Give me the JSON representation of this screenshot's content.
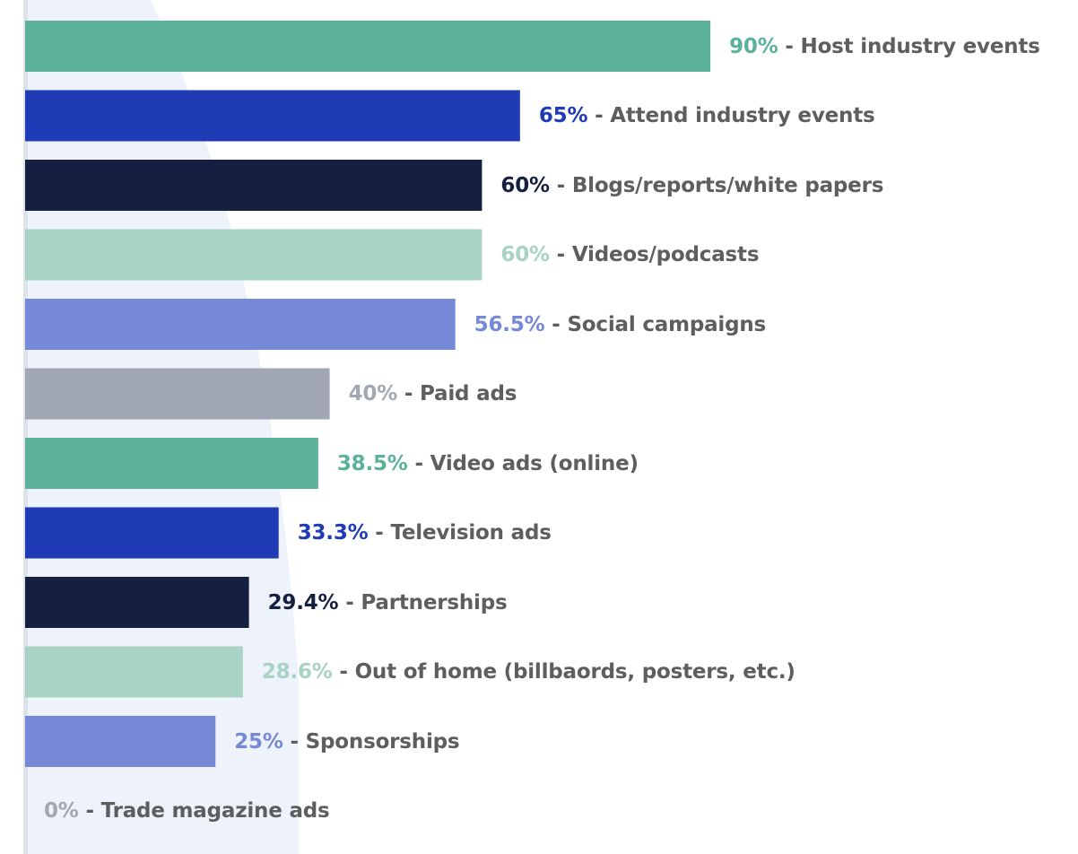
{
  "chart_data": {
    "type": "bar",
    "orientation": "horizontal",
    "title": "",
    "xlabel": "",
    "ylabel": "",
    "xlim": [
      0,
      100
    ],
    "grid": false,
    "legend": "none",
    "label_separator": " - ",
    "label_text_color": "#5e5e5e",
    "categories": [
      "Host industry events",
      "Attend industry events",
      "Blogs/reports/white papers",
      "Videos/podcasts",
      "Social campaigns",
      "Paid ads",
      "Video ads (online)",
      "Television ads",
      "Partnerships",
      "Out of home (billbaords, posters, etc.)",
      "Sponsorships",
      "Trade magazine ads"
    ],
    "values": [
      90,
      65,
      60,
      60,
      56.5,
      40,
      38.5,
      33.3,
      29.4,
      28.6,
      25,
      0
    ],
    "value_labels": [
      "90%",
      "65%",
      "60%",
      "60%",
      "56.5%",
      "40%",
      "38.5%",
      "33.3%",
      "29.4%",
      "28.6%",
      "25%",
      "0%"
    ],
    "colors": [
      "#5bb199",
      "#1f3bb6",
      "#151f3f",
      "#a8d2c3",
      "#7689d6",
      "#a2a8b3",
      "#5bb199",
      "#1f3bb6",
      "#151f3f",
      "#a8d2c3",
      "#7689d6",
      "#a2a8b3"
    ]
  },
  "background": {
    "page_color": "#ffffff",
    "band_color": "#eef2fb",
    "axis_line_color": "#dde1ea"
  }
}
